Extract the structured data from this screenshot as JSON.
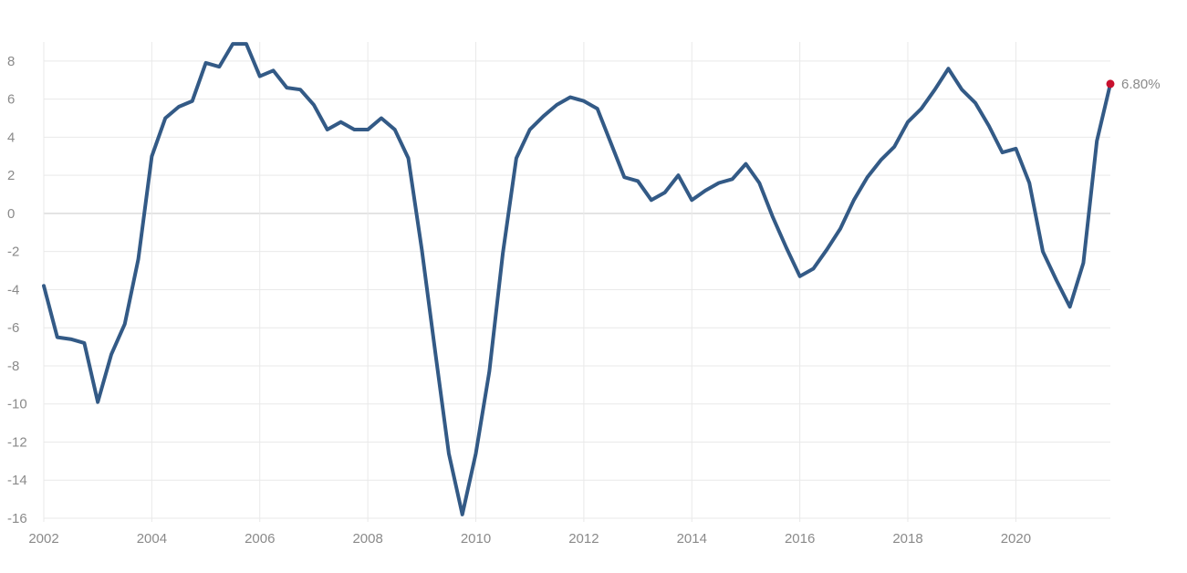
{
  "chart_data": {
    "type": "line",
    "xlim": [
      2002,
      2021.75
    ],
    "ylim": [
      -16,
      9
    ],
    "x_ticks": [
      "2002",
      "2004",
      "2006",
      "2008",
      "2010",
      "2012",
      "2014",
      "2016",
      "2018",
      "2020"
    ],
    "y_ticks": [
      "8",
      "6",
      "4",
      "2",
      "0",
      "-2",
      "-4",
      "-6",
      "-8",
      "-10",
      "-12",
      "-14",
      "-16"
    ],
    "grid": true,
    "series": [
      {
        "color": "#335a86",
        "x": [
          2002.0,
          2002.25,
          2002.5,
          2002.75,
          2003.0,
          2003.25,
          2003.5,
          2003.75,
          2004.0,
          2004.25,
          2004.5,
          2004.75,
          2005.0,
          2005.25,
          2005.5,
          2005.75,
          2006.0,
          2006.25,
          2006.5,
          2006.75,
          2007.0,
          2007.25,
          2007.5,
          2007.75,
          2008.0,
          2008.25,
          2008.5,
          2008.75,
          2009.0,
          2009.25,
          2009.5,
          2009.75,
          2010.0,
          2010.25,
          2010.5,
          2010.75,
          2011.0,
          2011.25,
          2011.5,
          2011.75,
          2012.0,
          2012.25,
          2012.5,
          2012.75,
          2013.0,
          2013.25,
          2013.5,
          2013.75,
          2014.0,
          2014.25,
          2014.5,
          2014.75,
          2015.0,
          2015.25,
          2015.5,
          2015.75,
          2016.0,
          2016.25,
          2016.5,
          2016.75,
          2017.0,
          2017.25,
          2017.5,
          2017.75,
          2018.0,
          2018.25,
          2018.5,
          2018.75,
          2019.0,
          2019.25,
          2019.5,
          2019.75,
          2020.0,
          2020.25,
          2020.5,
          2020.75,
          2021.0,
          2021.25,
          2021.5,
          2021.75
        ],
        "y": [
          -3.8,
          -6.5,
          -6.6,
          -6.8,
          -9.9,
          -7.4,
          -5.8,
          -2.4,
          3.0,
          5.0,
          5.6,
          5.9,
          7.9,
          7.7,
          8.9,
          8.9,
          7.2,
          7.5,
          6.6,
          6.5,
          5.7,
          4.4,
          4.8,
          4.4,
          4.4,
          5.0,
          4.4,
          2.9,
          -1.9,
          -7.3,
          -12.6,
          -15.8,
          -12.6,
          -8.3,
          -2.1,
          2.9,
          4.4,
          5.1,
          5.7,
          6.1,
          5.9,
          5.5,
          3.7,
          1.9,
          1.7,
          0.7,
          1.1,
          2.0,
          0.7,
          1.2,
          1.6,
          1.8,
          2.6,
          1.6,
          -0.2,
          -1.8,
          -3.3,
          -2.9,
          -1.9,
          -0.8,
          0.7,
          1.9,
          2.8,
          3.5,
          4.8,
          5.5,
          6.5,
          7.6,
          6.5,
          5.8,
          4.6,
          3.2,
          3.4,
          1.6,
          -2.0,
          -3.5,
          -4.9,
          -2.6,
          3.8,
          6.8
        ]
      }
    ],
    "last_point": {
      "x": 2021.75,
      "y": 6.8,
      "label": "6.80%",
      "color": "#c8102e"
    }
  }
}
